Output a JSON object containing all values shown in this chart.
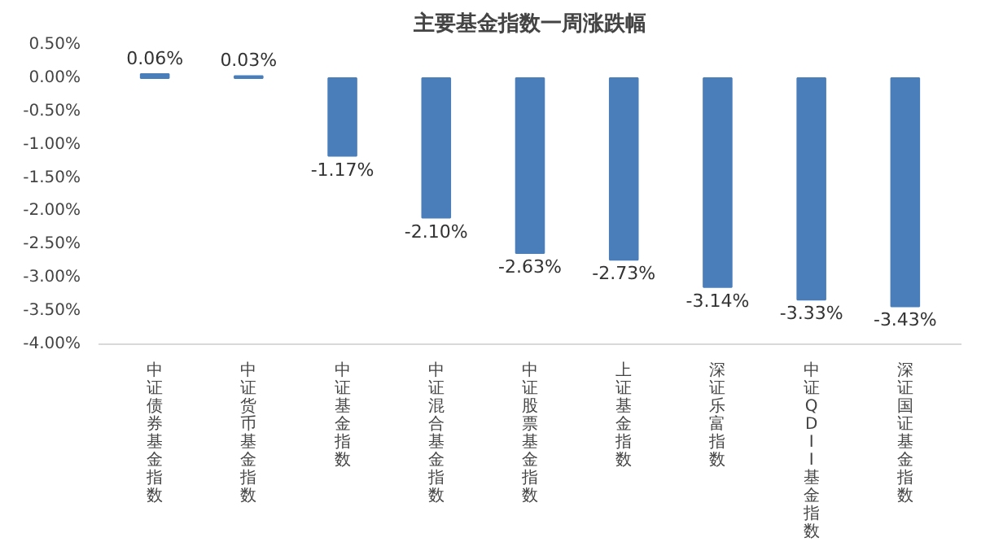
{
  "chart_data": {
    "type": "bar",
    "title": "主要基金指数一周涨跌幅",
    "categories": [
      "中证债券基金指数",
      "中证货币基金指数",
      "中证基金指数",
      "中证混合基金指数",
      "中证股票基金指数",
      "上证基金指数",
      "深证乐富指数",
      "中证QDII基金指数",
      "深证国证基金指数"
    ],
    "values": [
      0.06,
      0.03,
      -1.17,
      -2.1,
      -2.63,
      -2.73,
      -3.14,
      -3.33,
      -3.43
    ],
    "color": "#4a7ebb",
    "value_labels": [
      "0.06%",
      "0.03%",
      "-1.17%",
      "-2.10%",
      "-2.63%",
      "-2.73%",
      "-3.14%",
      "-3.33%",
      "-3.43%"
    ],
    "ylim": [
      -4.0,
      0.5
    ],
    "yticks": [
      {
        "value": 0.5,
        "label": "0.50%"
      },
      {
        "value": 0.0,
        "label": "0.00%"
      },
      {
        "value": -0.5,
        "label": "-0.50%"
      },
      {
        "value": -1.0,
        "label": "-1.00%"
      },
      {
        "value": -1.5,
        "label": "-1.50%"
      },
      {
        "value": -2.0,
        "label": "-2.00%"
      },
      {
        "value": -2.5,
        "label": "-2.50%"
      },
      {
        "value": -3.0,
        "label": "-3.00%"
      },
      {
        "value": -3.5,
        "label": "-3.50%"
      },
      {
        "value": -4.0,
        "label": "-4.00%"
      }
    ],
    "grid": false
  }
}
